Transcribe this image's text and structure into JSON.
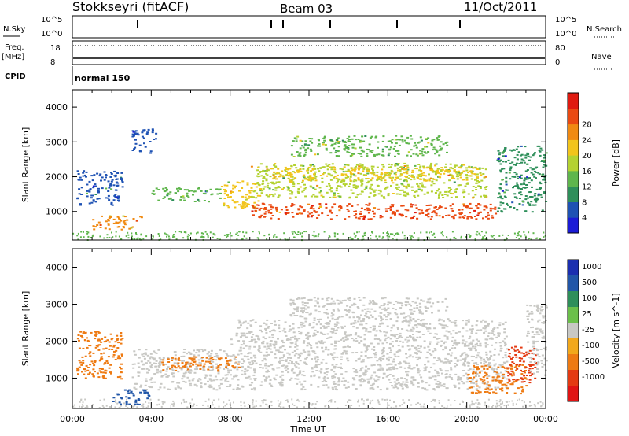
{
  "header": {
    "station": "Stokkseyri (fitACF)",
    "beam": "Beam 03",
    "date": "11/Oct/2011"
  },
  "aux": {
    "nsky_label": "N.Sky",
    "nsky_ticks": [
      "10^5",
      "10^0"
    ],
    "nsearch_label": "N.Search",
    "freq_label": "Freq.",
    "freq_unit": "[MHz]",
    "freq_ticks": [
      "18",
      "8"
    ],
    "nave_label": "Nave",
    "nave_ticks": [
      "80",
      "0"
    ],
    "cpid_label": "CPID",
    "cpid_value": "normal 150"
  },
  "time_axis": {
    "label": "Time UT",
    "ticks": [
      "00:00",
      "04:00",
      "08:00",
      "12:00",
      "16:00",
      "20:00",
      "00:00"
    ]
  },
  "colors": {
    "power_scale": [
      "#1b1bd6",
      "#1e52b4",
      "#2e8f5a",
      "#5fb64c",
      "#b4d231",
      "#f2c41b",
      "#f08a12",
      "#ea4a12",
      "#e01a10"
    ],
    "velocity_scale": [
      "#1b2fb0",
      "#2156a8",
      "#2e8f5a",
      "#6bc04a",
      "#c8c8c4",
      "#f2a81b",
      "#ee7a12",
      "#e43a12",
      "#e01414"
    ]
  },
  "chart_data": [
    {
      "type": "heatmap",
      "title": "Power",
      "ylabel": "Slant Range [km]",
      "xlabel": "",
      "xlim": [
        "00:00",
        "24:00"
      ],
      "ylim": [
        180,
        4500
      ],
      "yticks": [
        1000,
        2000,
        3000,
        4000
      ],
      "colorbar": {
        "label": "Power [dB]",
        "ticks": [
          4,
          8,
          12,
          16,
          20,
          24,
          28
        ],
        "range": [
          0,
          32
        ]
      },
      "regions": [
        {
          "t0": 0.2,
          "t1": 2.5,
          "r0": 1200,
          "r1": 2200,
          "value": 7
        },
        {
          "t0": 1.0,
          "t1": 3.5,
          "r0": 500,
          "r1": 900,
          "value": 22
        },
        {
          "t0": 3.0,
          "t1": 4.2,
          "r0": 2700,
          "r1": 3400,
          "value": 6
        },
        {
          "t0": 4.0,
          "t1": 7.5,
          "r0": 1300,
          "r1": 1700,
          "value": 12
        },
        {
          "t0": 7.5,
          "t1": 9.5,
          "r0": 1100,
          "r1": 1900,
          "value": 18
        },
        {
          "t0": 8.8,
          "t1": 21.5,
          "r0": 800,
          "r1": 1250,
          "value": 27
        },
        {
          "t0": 9.0,
          "t1": 21.0,
          "r0": 1400,
          "r1": 2400,
          "value": 16
        },
        {
          "t0": 10.0,
          "t1": 20.5,
          "r0": 1900,
          "r1": 2300,
          "value": 19
        },
        {
          "t0": 11.0,
          "t1": 19.0,
          "r0": 2600,
          "r1": 3200,
          "value": 13
        },
        {
          "t0": 21.5,
          "t1": 24.0,
          "r0": 1000,
          "r1": 2900,
          "value": 8
        }
      ]
    },
    {
      "type": "heatmap",
      "title": "Velocity",
      "ylabel": "Slant Range [km]",
      "xlabel": "Time UT",
      "xlim": [
        "00:00",
        "24:00"
      ],
      "ylim": [
        180,
        4500
      ],
      "yticks": [
        1000,
        2000,
        3000,
        4000
      ],
      "colorbar": {
        "label": "Velocity [m s^-1]",
        "ticks": [
          1000,
          500,
          100,
          25,
          -25,
          -100,
          -500,
          -1000
        ]
      },
      "regions": [
        {
          "t0": 0.2,
          "t1": 2.5,
          "r0": 1000,
          "r1": 2300,
          "value": -300
        },
        {
          "t0": 2.0,
          "t1": 4.0,
          "r0": 300,
          "r1": 700,
          "value": 200
        },
        {
          "t0": 3.0,
          "t1": 8.0,
          "r0": 700,
          "r1": 1800,
          "value": 0
        },
        {
          "t0": 4.5,
          "t1": 8.5,
          "r0": 1200,
          "r1": 1600,
          "value": -400
        },
        {
          "t0": 8.0,
          "t1": 22.0,
          "r0": 700,
          "r1": 2600,
          "value": 0
        },
        {
          "t0": 11.0,
          "t1": 19.0,
          "r0": 2600,
          "r1": 3200,
          "value": 0
        },
        {
          "t0": 20.0,
          "t1": 23.0,
          "r0": 600,
          "r1": 1400,
          "value": -300
        },
        {
          "t0": 22.0,
          "t1": 23.5,
          "r0": 900,
          "r1": 1900,
          "value": -900
        },
        {
          "t0": 23.0,
          "t1": 24.0,
          "r0": 1100,
          "r1": 3000,
          "value": 0
        }
      ]
    }
  ]
}
